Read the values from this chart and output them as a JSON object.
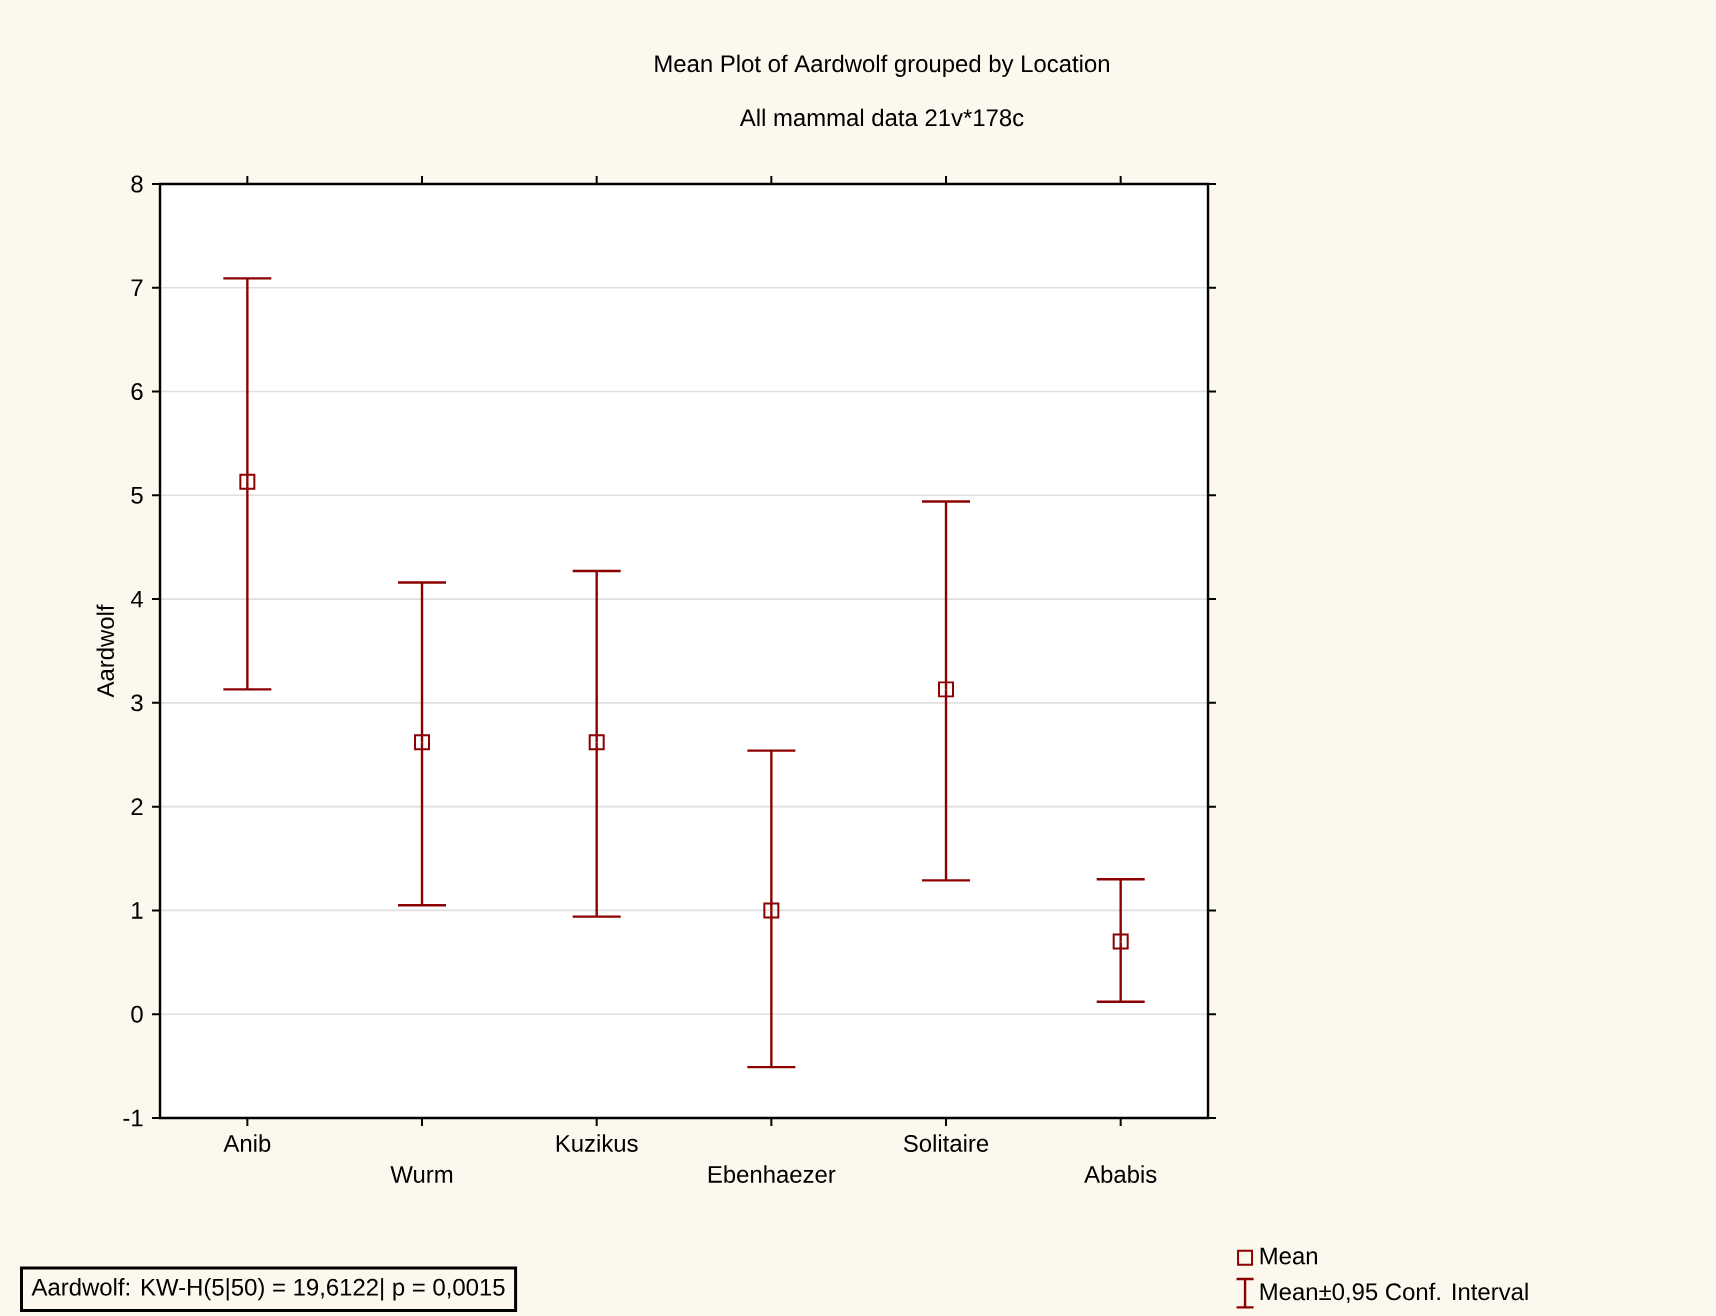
{
  "chart_data": {
    "type": "scatter",
    "title": "Mean Plot of Aardwolf grouped by  Location",
    "subtitle": "All mammal data 21v*178c",
    "ylabel": "Aardwolf",
    "categories": [
      "Anib",
      "Wurm",
      "Kuzikus",
      "Ebenhaezer",
      "Solitaire",
      "Ababis"
    ],
    "series": [
      {
        "name": "Mean",
        "color": "#8b0000",
        "values": [
          5.13,
          2.62,
          2.62,
          1.0,
          3.13,
          0.7
        ],
        "errors": [
          [
            3.13,
            7.09
          ],
          [
            1.05,
            4.16
          ],
          [
            0.94,
            4.27
          ],
          [
            -0.51,
            2.54
          ],
          [
            1.29,
            4.94
          ],
          [
            0.12,
            1.3
          ]
        ]
      }
    ],
    "ylim": [
      -1,
      8
    ],
    "yticks": [
      -1,
      0,
      1,
      2,
      3,
      4,
      5,
      6,
      7,
      8
    ],
    "grid": "y",
    "marker": "square",
    "legend": "bottom right",
    "annotations": [
      "Aardwolf:  KW-H(5|50) = 19,6122|  p = 0,0015",
      "Mean±0,95 Conf. Interval"
    ]
  }
}
